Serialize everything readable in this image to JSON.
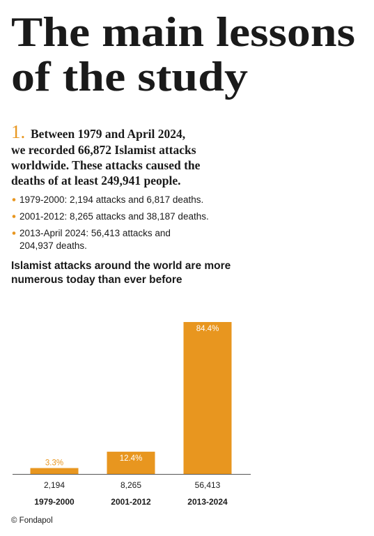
{
  "title_lines": [
    "The main lessons",
    "of the study"
  ],
  "section": {
    "number": "1.",
    "lead": [
      "Between 1979 and April 2024,",
      "we recorded 66,872 Islamist attacks",
      "worldwide. These attacks caused the",
      "deaths of at least 249,941 people."
    ]
  },
  "bullets": [
    [
      "1979-2000: 2,194 attacks and 6,817 deaths."
    ],
    [
      "2001-2012: 8,265 attacks and 38,187 deaths."
    ],
    [
      "2013-April 2024: 56,413 attacks and",
      "204,937 deaths."
    ]
  ],
  "chart_data": {
    "type": "bar",
    "title_lines": [
      "Islamist attacks around the world are more",
      "numerous today than ever before"
    ],
    "categories": [
      "1979-2000",
      "2001-2012",
      "2013-2024"
    ],
    "values": [
      2194,
      8265,
      56413
    ],
    "value_labels": [
      "2,194",
      "8,265",
      "56,413"
    ],
    "shares": [
      3.3,
      12.4,
      84.4
    ],
    "share_labels": [
      "3.3%",
      "12.4%",
      "84.4%"
    ],
    "color": "#e8961f",
    "source": "© Fondapol"
  }
}
